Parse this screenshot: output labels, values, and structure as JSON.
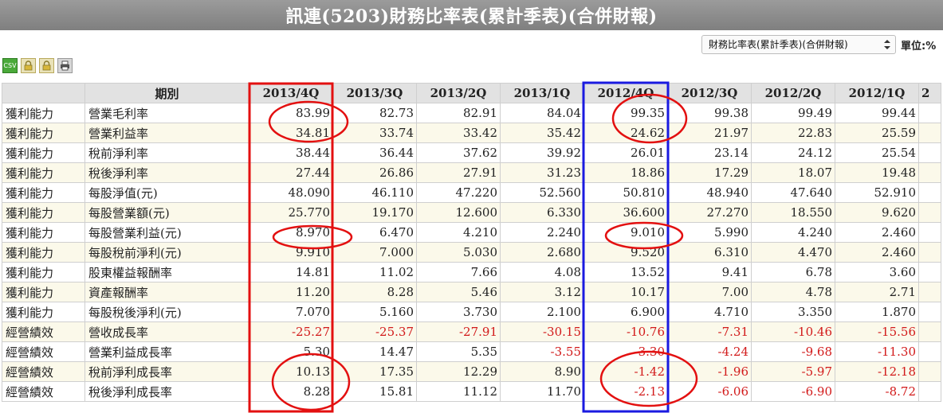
{
  "title": "訊連(5203)財務比率表(累計季表)(合併財報)",
  "report_select": {
    "value": "財務比率表(累計季表)(合併財報)"
  },
  "unit": "單位:%",
  "toolbar": {
    "csv_label": "CSV"
  },
  "table": {
    "period_header": "期別",
    "columns": [
      "2013/4Q",
      "2013/3Q",
      "2013/2Q",
      "2013/1Q",
      "2012/4Q",
      "2012/3Q",
      "2012/2Q",
      "2012/1Q",
      "2"
    ],
    "rows": [
      {
        "cat": "獲利能力",
        "item": "營業毛利率",
        "values": [
          "83.99",
          "82.73",
          "82.91",
          "84.04",
          "99.35",
          "99.38",
          "99.49",
          "99.44",
          ""
        ]
      },
      {
        "cat": "獲利能力",
        "item": "營業利益率",
        "values": [
          "34.81",
          "33.74",
          "33.42",
          "35.42",
          "24.62",
          "21.97",
          "22.83",
          "25.59",
          ""
        ]
      },
      {
        "cat": "獲利能力",
        "item": "稅前淨利率",
        "values": [
          "38.44",
          "36.44",
          "37.62",
          "39.92",
          "26.01",
          "23.14",
          "24.12",
          "25.54",
          ""
        ]
      },
      {
        "cat": "獲利能力",
        "item": "稅後淨利率",
        "values": [
          "27.44",
          "26.86",
          "27.91",
          "31.23",
          "18.86",
          "17.29",
          "18.07",
          "19.48",
          ""
        ]
      },
      {
        "cat": "獲利能力",
        "item": "每股淨值(元)",
        "values": [
          "48.090",
          "46.110",
          "47.220",
          "52.560",
          "50.810",
          "48.940",
          "47.640",
          "52.910",
          ""
        ]
      },
      {
        "cat": "獲利能力",
        "item": "每股營業額(元)",
        "values": [
          "25.770",
          "19.170",
          "12.600",
          "6.330",
          "36.600",
          "27.270",
          "18.550",
          "9.620",
          ""
        ]
      },
      {
        "cat": "獲利能力",
        "item": "每股營業利益(元)",
        "values": [
          "8.970",
          "6.470",
          "4.210",
          "2.240",
          "9.010",
          "5.990",
          "4.240",
          "2.460",
          ""
        ]
      },
      {
        "cat": "獲利能力",
        "item": "每股稅前淨利(元)",
        "values": [
          "9.910",
          "7.000",
          "5.030",
          "2.680",
          "9.520",
          "6.310",
          "4.470",
          "2.460",
          ""
        ]
      },
      {
        "cat": "獲利能力",
        "item": "股東權益報酬率",
        "values": [
          "14.81",
          "11.02",
          "7.66",
          "4.08",
          "13.52",
          "9.41",
          "6.78",
          "3.60",
          ""
        ]
      },
      {
        "cat": "獲利能力",
        "item": "資產報酬率",
        "values": [
          "11.20",
          "8.28",
          "5.46",
          "3.12",
          "10.17",
          "7.00",
          "4.78",
          "2.71",
          ""
        ]
      },
      {
        "cat": "獲利能力",
        "item": "每股稅後淨利(元)",
        "values": [
          "7.070",
          "5.160",
          "3.730",
          "2.100",
          "6.900",
          "4.710",
          "3.350",
          "1.870",
          ""
        ]
      },
      {
        "cat": "經營績效",
        "item": "營收成長率",
        "values": [
          "-25.27",
          "-25.37",
          "-27.91",
          "-30.15",
          "-10.76",
          "-7.31",
          "-10.46",
          "-15.56",
          ""
        ]
      },
      {
        "cat": "經營績效",
        "item": "營業利益成長率",
        "values": [
          "5.30",
          "14.47",
          "5.35",
          "-3.55",
          "-3.30",
          "-4.24",
          "-9.68",
          "-11.30",
          ""
        ]
      },
      {
        "cat": "經營績效",
        "item": "稅前淨利成長率",
        "values": [
          "10.13",
          "17.35",
          "12.29",
          "8.90",
          "-1.42",
          "-1.96",
          "-5.97",
          "-12.18",
          ""
        ]
      },
      {
        "cat": "經營績效",
        "item": "稅後淨利成長率",
        "values": [
          "8.28",
          "15.81",
          "11.12",
          "11.70",
          "-2.13",
          "-6.06",
          "-6.90",
          "-8.72",
          ""
        ]
      }
    ]
  },
  "annotations": {
    "red_color": "#e31010",
    "blue_color": "#1a1ae0"
  }
}
